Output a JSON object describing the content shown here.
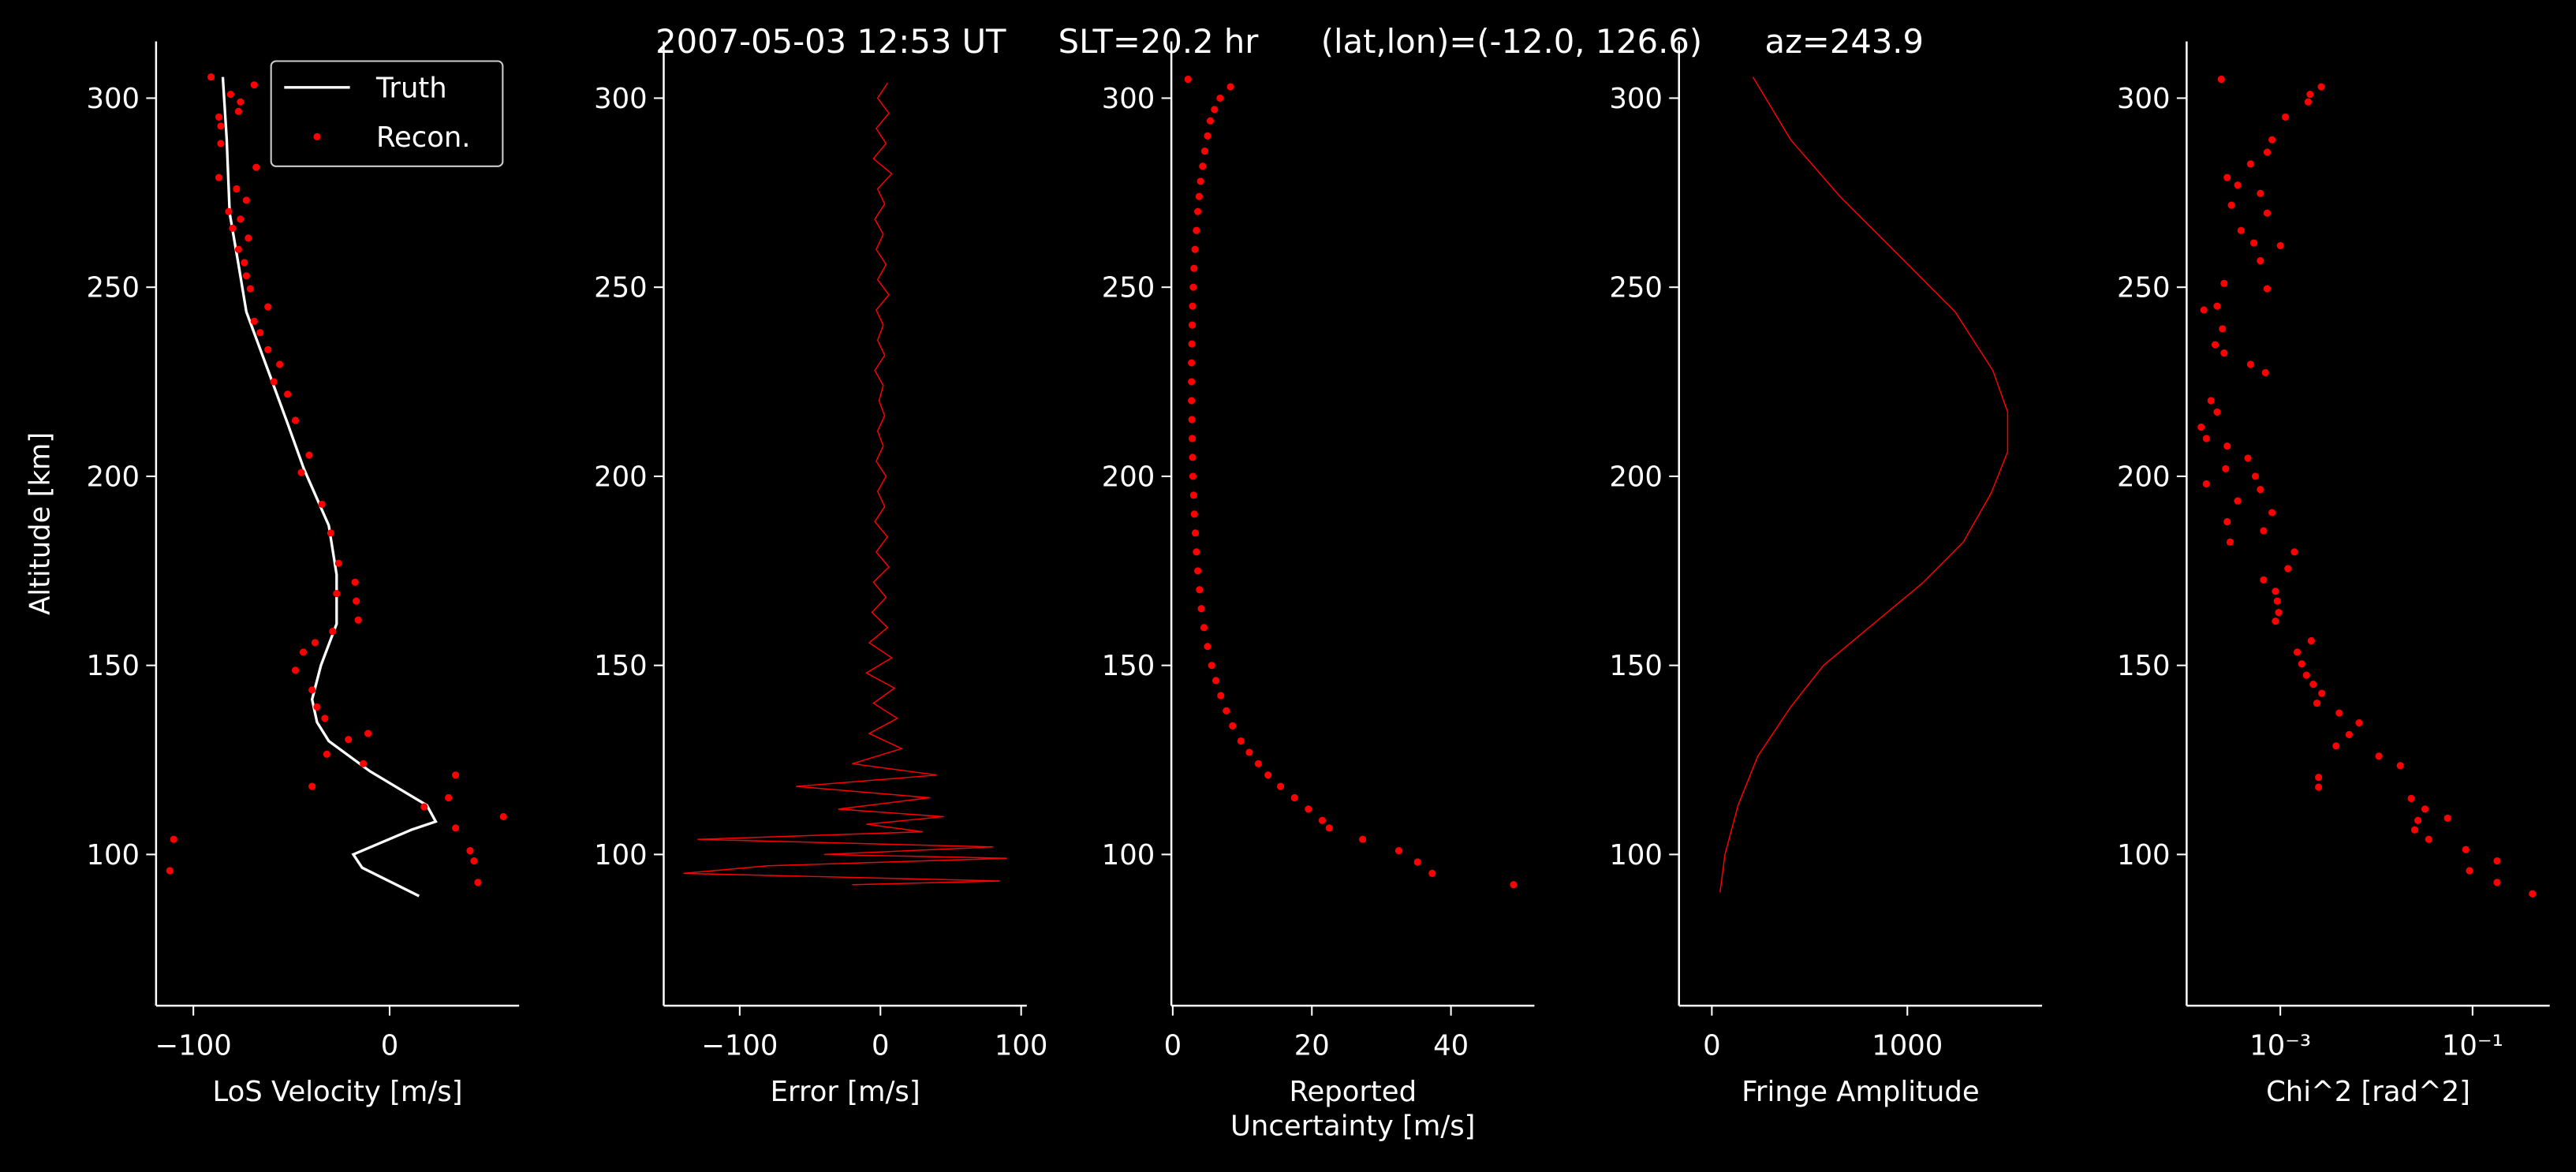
{
  "title": "2007-05-03 12:53 UT     SLT=20.2 hr      (lat,lon)=(-12.0, 126.6)      az=243.9",
  "chart_data": [
    {
      "type": "scatter",
      "xlabel": [
        "LoS Velocity [m/s]"
      ],
      "ylabel": "Altitude [km]",
      "legend": "upper right",
      "xlim": [
        -119,
        66
      ],
      "xticks": [
        {
          "value": -100,
          "label": "−100"
        },
        0
      ],
      "ylim": [
        60,
        315
      ],
      "yticks": [
        100,
        150,
        200,
        250,
        300
      ],
      "series": [
        {
          "name": "Truth",
          "mode": "line",
          "color": "#ffffff",
          "y": [
            305.6,
            289,
            269.6,
            256,
            243.5,
            226,
            214,
            202,
            187,
            174,
            161,
            150,
            141,
            135,
            130,
            122,
            113,
            108.7,
            106.5,
            100,
            96.5,
            89
          ],
          "x": [
            -85,
            -83,
            -81.5,
            -77,
            -73,
            -60.5,
            -52,
            -43.7,
            -31,
            -27,
            -27,
            -35,
            -39.5,
            -37,
            -31,
            -10,
            19,
            23.5,
            11,
            -18.5,
            -14,
            15
          ]
        },
        {
          "name": "Recon.",
          "mode": "markers",
          "color": "#ff0000",
          "y": [
            305.6,
            303.5,
            301,
            299,
            296.5,
            295,
            292.6,
            288,
            281.7,
            279,
            276,
            273,
            270,
            268,
            265.6,
            263,
            260,
            256.5,
            253,
            249.6,
            244.8,
            241,
            238,
            233.5,
            229.6,
            225,
            221.7,
            214.8,
            205.6,
            201,
            192.6,
            185,
            177,
            172,
            169,
            167,
            162,
            159,
            156,
            153.5,
            148.7,
            143.5,
            139,
            136,
            132,
            130.4,
            126.5,
            124,
            121,
            118,
            115,
            112.6,
            110,
            107,
            104,
            101,
            98.3,
            95.7,
            92.6
          ],
          "x": [
            -91,
            -69,
            -81,
            -76,
            -77,
            -87,
            -86,
            -86,
            -68,
            -87,
            -78,
            -73,
            -82,
            -76,
            -80,
            -72,
            -77,
            -74,
            -73,
            -71,
            -62,
            -69,
            -66,
            -62,
            -56,
            -59,
            -52,
            -48,
            -41,
            -45,
            -34.5,
            -30,
            -26,
            -17.6,
            -27,
            -17,
            -16,
            -29,
            -38,
            -44,
            -48,
            -39.5,
            -37,
            -33,
            -11,
            -21,
            -32,
            -13.4,
            33.6,
            -39.5,
            30,
            17.6,
            58,
            33.6,
            -110,
            41,
            43,
            -112,
            45
          ]
        }
      ]
    },
    {
      "type": "line",
      "xlabel": [
        "Error [m/s]"
      ],
      "xlim": [
        -154,
        104
      ],
      "xticks": [
        {
          "value": -100,
          "label": "−100"
        },
        0,
        100
      ],
      "ylim": [
        60,
        315
      ],
      "yticks": [
        100,
        150,
        200,
        250,
        300
      ],
      "series": [
        {
          "name": "Error",
          "mode": "line",
          "color": "#ff0000",
          "y": [
            304,
            300,
            296,
            292,
            288,
            284,
            280,
            276,
            272,
            268,
            264,
            260,
            256,
            252,
            248,
            244,
            240,
            236,
            232,
            228,
            224,
            220,
            216,
            212,
            208,
            204,
            200,
            196,
            192,
            188,
            184,
            180,
            176,
            172,
            168,
            164,
            160,
            156,
            152,
            148,
            144,
            140,
            136,
            132,
            128,
            124,
            121,
            118,
            115,
            112,
            110,
            108,
            106,
            104,
            102,
            100,
            99,
            97,
            95,
            93,
            92
          ],
          "x": [
            5,
            -2,
            6,
            -3,
            4,
            -5,
            8,
            -2,
            3,
            -4,
            2,
            -3,
            4,
            -2,
            6,
            -3,
            2,
            -2,
            3,
            -4,
            2,
            -1,
            3,
            -2,
            2,
            -3,
            4,
            -2,
            3,
            -4,
            5,
            -3,
            6,
            -5,
            4,
            -6,
            5,
            -8,
            8,
            -10,
            10,
            -5,
            12,
            -8,
            15,
            -20,
            40,
            -60,
            35,
            -30,
            45,
            -10,
            30,
            -130,
            80,
            -40,
            90,
            -80,
            -140,
            85,
            -20
          ]
        }
      ]
    },
    {
      "type": "scatter",
      "xlabel": [
        "Reported",
        "Uncertainty [m/s]"
      ],
      "xlim": [
        -0.2,
        52
      ],
      "xticks": [
        0,
        20,
        40
      ],
      "ylim": [
        60,
        315
      ],
      "yticks": [
        100,
        150,
        200,
        250,
        300
      ],
      "series": [
        {
          "name": "Uncertainty",
          "mode": "markers",
          "color": "#ff0000",
          "y": [
            305,
            303,
            300,
            297,
            294,
            290,
            286,
            282,
            278,
            274,
            270,
            265,
            260,
            255,
            250,
            245,
            240,
            235,
            230,
            225,
            220,
            215,
            210,
            205,
            200,
            195,
            190,
            185,
            180,
            175,
            170,
            165,
            160,
            155,
            150,
            146,
            142,
            138,
            134,
            130,
            127,
            124,
            121,
            118,
            115,
            112,
            109,
            107,
            104,
            101,
            98,
            95,
            92
          ],
          "x": [
            2.2,
            8.3,
            6.8,
            6,
            5.4,
            5,
            4.6,
            4.3,
            4,
            3.8,
            3.6,
            3.4,
            3.2,
            3.05,
            2.95,
            2.85,
            2.8,
            2.75,
            2.7,
            2.7,
            2.7,
            2.75,
            2.8,
            2.85,
            2.9,
            3,
            3.1,
            3.25,
            3.4,
            3.6,
            3.85,
            4.1,
            4.5,
            5,
            5.6,
            6.2,
            6.9,
            7.7,
            8.6,
            9.8,
            11,
            12.3,
            13.7,
            15.5,
            17.5,
            19.5,
            21.5,
            22.5,
            27.3,
            32.5,
            35.2,
            37.3,
            49
          ]
        }
      ]
    },
    {
      "type": "line",
      "xlabel": [
        "Fringe Amplitude"
      ],
      "xlim": [
        -168,
        1689
      ],
      "xticks": [
        0,
        1000
      ],
      "ylim": [
        60,
        315
      ],
      "yticks": [
        100,
        150,
        200,
        250,
        300
      ],
      "series": [
        {
          "name": "Fringe Amplitude",
          "mode": "line",
          "color": "#ff0000",
          "y": [
            305.6,
            289,
            274,
            261,
            243.5,
            228,
            217,
            206.5,
            195.6,
            182.6,
            171.7,
            160.9,
            150,
            139,
            126,
            113,
            100,
            90
          ],
          "x": [
            210,
            403,
            655,
            907,
            1244,
            1437,
            1513,
            1513,
            1429,
            1286,
            1076,
            824,
            571,
            403,
            235,
            134,
            67,
            42
          ]
        }
      ]
    },
    {
      "type": "scatter",
      "xlabel": [
        "Chi^2 [rad^2]"
      ],
      "xscale": "log",
      "xlim": [
        0.000106,
        0.635
      ],
      "xticks": [
        {
          "value": 0.001,
          "label": "10⁻³"
        },
        {
          "value": 0.1,
          "label": "10⁻¹"
        }
      ],
      "ylim": [
        60,
        315
      ],
      "yticks": [
        100,
        150,
        200,
        250,
        300
      ],
      "series": [
        {
          "name": "Chi^2",
          "mode": "markers",
          "color": "#ff0000",
          "y": [
            305,
            303,
            301,
            299,
            295,
            289,
            285.7,
            282.6,
            279,
            277,
            271.7,
            274.8,
            269.6,
            265,
            261.7,
            261,
            257,
            251,
            249.6,
            245,
            244,
            239,
            234.8,
            232.6,
            229.6,
            227.4,
            220,
            217,
            213,
            210,
            208,
            204.8,
            202,
            198,
            200,
            196.5,
            193.5,
            190.4,
            188,
            185.6,
            182.6,
            180,
            175.6,
            172.6,
            169.6,
            167,
            164,
            161.7,
            156.5,
            153.5,
            150.4,
            147.4,
            145,
            142.6,
            140,
            137.4,
            134.8,
            131.7,
            128.7,
            126,
            120.4,
            117.8,
            123.5,
            114.8,
            112,
            109.6,
            109,
            106.5,
            104,
            101.3,
            98.3,
            95.7,
            92.6,
            89.6
          ],
          "x": [
            0.000243,
            0.00267,
            0.00204,
            0.00195,
            0.00113,
            0.00082,
            0.00073,
            0.00049,
            0.00028,
            0.00036,
            0.00031,
            0.00062,
            0.00073,
            0.00039,
            0.00053,
            0.001,
            0.00062,
            0.00026,
            0.00073,
            0.00022,
            0.00016,
            0.00025,
            0.00021,
            0.00026,
            0.00049,
            0.0007,
            0.00019,
            0.00022,
            0.00015,
            0.00017,
            0.00028,
            0.00046,
            0.00027,
            0.00017,
            0.00055,
            0.00062,
            0.00036,
            0.00082,
            0.00028,
            0.00067,
            0.0003,
            0.0014,
            0.0012,
            0.00067,
            0.00089,
            0.00093,
            0.00096,
            0.00089,
            0.0021,
            0.0015,
            0.00167,
            0.00187,
            0.0022,
            0.0027,
            0.0024,
            0.0041,
            0.0066,
            0.0052,
            0.0038,
            0.0106,
            0.0025,
            0.0025,
            0.0177,
            0.023,
            0.032,
            0.055,
            0.027,
            0.025,
            0.035,
            0.085,
            0.18,
            0.093,
            0.18,
            0.42
          ]
        }
      ]
    }
  ]
}
